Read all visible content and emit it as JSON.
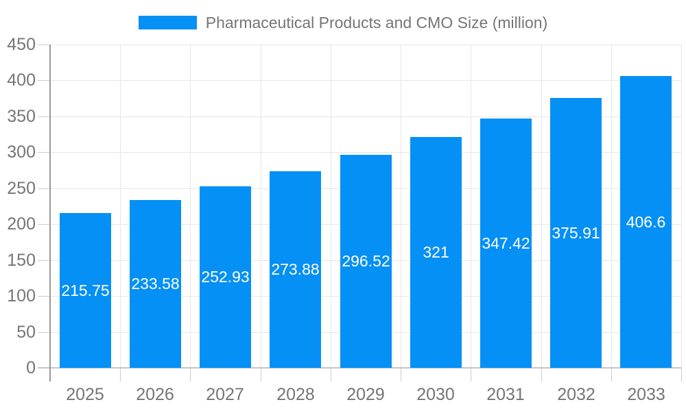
{
  "chart_data": {
    "type": "bar",
    "title": "Pharmaceutical Products and CMO Size (million)",
    "categories": [
      "2025",
      "2026",
      "2027",
      "2028",
      "2029",
      "2030",
      "2031",
      "2032",
      "2033"
    ],
    "series": [
      {
        "name": "Pharmaceutical Products and CMO Size (million)",
        "values": [
          215.75,
          233.58,
          252.93,
          273.88,
          296.52,
          321,
          347.42,
          375.91,
          406.6
        ],
        "value_labels": [
          "215.75",
          "233.58",
          "252.93",
          "273.88",
          "296.52",
          "321",
          "347.42",
          "375.91",
          "406.6"
        ]
      }
    ],
    "xlabel": "",
    "ylabel": "",
    "ylim": [
      0,
      450
    ],
    "ytick_step": 50,
    "ytick_labels": [
      "0",
      "50",
      "100",
      "150",
      "200",
      "250",
      "300",
      "350",
      "400",
      "450"
    ],
    "grid": true,
    "legend_position": "top",
    "value_labels_position": "center-inside"
  },
  "colors": {
    "bar": "#0590f5",
    "grid": "#e6e6e6",
    "tick": "#cccccc",
    "baseline": "#c6c6c6",
    "axis": "#999999",
    "label_text": "#757575",
    "value_text": "#ffffff",
    "background": "#ffffff"
  }
}
